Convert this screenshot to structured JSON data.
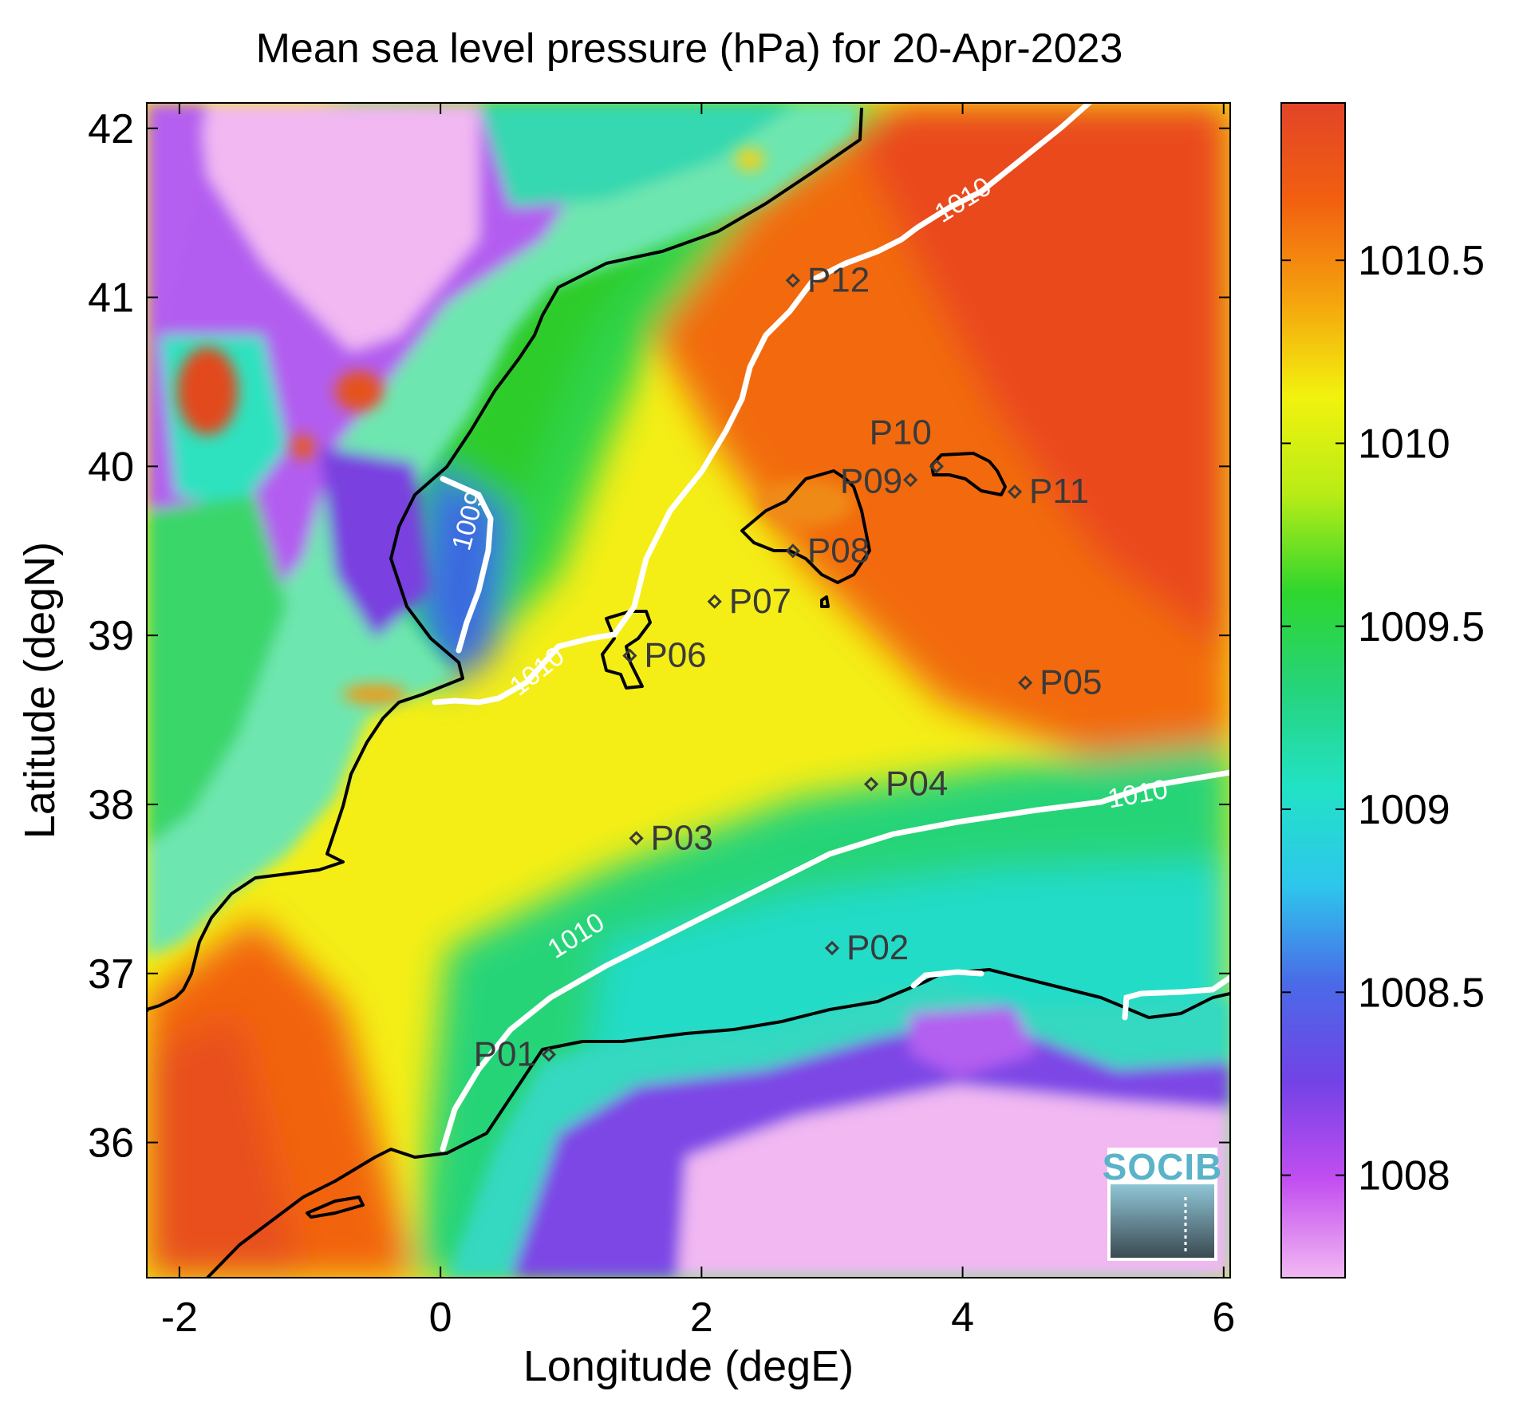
{
  "title": "Mean sea level pressure (hPa) for 20-Apr-2023",
  "map": {
    "xlabel": "Longitude (degE)",
    "ylabel": "Latitude (degN)",
    "xlim": [
      -2.25,
      6.05
    ],
    "ylim": [
      35.2,
      42.15
    ],
    "xticks": [
      -2,
      0,
      2,
      4,
      6
    ],
    "yticks": [
      36,
      37,
      38,
      39,
      40,
      41,
      42
    ]
  },
  "colorbar": {
    "min": 1007.72,
    "max": 1010.93,
    "ticks": [
      1008,
      1008.5,
      1009,
      1009.5,
      1010,
      1010.5
    ],
    "colors": [
      "#f2b8f2",
      "#c24ef0",
      "#7342e6",
      "#4a6ae8",
      "#2ec6ec",
      "#22e2c6",
      "#26d47c",
      "#2ed62e",
      "#b8ec16",
      "#f2f20e",
      "#f5a20e",
      "#f26010",
      "#e24428"
    ]
  },
  "stations": [
    {
      "name": "P01",
      "lon": 0.83,
      "lat": 36.52
    },
    {
      "name": "P02",
      "lon": 3.0,
      "lat": 37.15
    },
    {
      "name": "P03",
      "lon": 1.5,
      "lat": 37.8
    },
    {
      "name": "P04",
      "lon": 3.3,
      "lat": 38.12
    },
    {
      "name": "P05",
      "lon": 4.48,
      "lat": 38.72
    },
    {
      "name": "P06",
      "lon": 1.45,
      "lat": 38.88
    },
    {
      "name": "P07",
      "lon": 2.1,
      "lat": 39.2
    },
    {
      "name": "P08",
      "lon": 2.7,
      "lat": 39.5
    },
    {
      "name": "P09",
      "lon": 3.6,
      "lat": 39.92
    },
    {
      "name": "P10",
      "lon": 3.8,
      "lat": 40.0
    },
    {
      "name": "P11",
      "lon": 4.4,
      "lat": 39.85
    },
    {
      "name": "P12",
      "lon": 2.7,
      "lat": 41.1
    }
  ],
  "contour_labels": [
    "1009",
    "1010",
    "1010",
    "1010",
    "1010"
  ],
  "logo": "SOCIB"
}
